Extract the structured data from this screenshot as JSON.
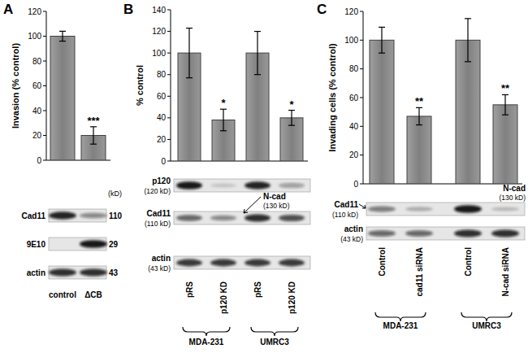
{
  "chart_data": [
    {
      "type": "bar",
      "panel": "A",
      "y_label": "Invasion (% control)",
      "categories": [
        "control",
        "ΔCB"
      ],
      "values": [
        100,
        20
      ],
      "errors": [
        4,
        7
      ],
      "significance": [
        null,
        "***"
      ],
      "color": "#808080",
      "ylim": [
        0,
        120
      ],
      "yticks": [
        0,
        20,
        40,
        60,
        80,
        100,
        120
      ],
      "blot": {
        "header": "(kD)",
        "rows": [
          {
            "left": [
              "Cad11"
            ],
            "right": [
              "110"
            ]
          },
          {
            "left": [
              "9E10"
            ],
            "right": [
              "29"
            ]
          },
          {
            "left": [
              "actin"
            ],
            "right": [
              "43"
            ]
          }
        ]
      }
    },
    {
      "type": "bar",
      "panel": "B",
      "y_label": "% control",
      "categories": [
        "pRS",
        "p120 KD",
        "pRS",
        "p120 KD"
      ],
      "values": [
        100,
        38,
        100,
        40
      ],
      "errors": [
        23,
        10,
        20,
        7
      ],
      "significance": [
        null,
        "*",
        null,
        "*"
      ],
      "groups": [
        "MDA-231",
        "UMRC3"
      ],
      "color": "#808080",
      "ylim": [
        0,
        140
      ],
      "yticks": [
        0,
        20,
        40,
        60,
        80,
        100,
        120,
        140
      ],
      "blot": {
        "rows": [
          {
            "left": [
              "p120",
              "(120 kD)"
            ]
          },
          {
            "left": [
              "Cad11",
              "(110 kD)"
            ],
            "right": [
              "N-cad",
              "(130 kD)"
            ]
          },
          {
            "left": [
              "actin",
              "(43 kD)"
            ]
          }
        ]
      }
    },
    {
      "type": "bar",
      "panel": "C",
      "y_label": "Invading cells (% control)",
      "categories": [
        "Control",
        "cad11 siRNA",
        "Control",
        "N-cad siRNA"
      ],
      "values": [
        100,
        47,
        100,
        55
      ],
      "errors": [
        9,
        6,
        15,
        7
      ],
      "significance": [
        null,
        "**",
        null,
        "**"
      ],
      "groups": [
        "MDA-231",
        "UMRC3"
      ],
      "color": "#808080",
      "ylim": [
        0,
        120
      ],
      "yticks": [
        0,
        20,
        40,
        60,
        80,
        100,
        120
      ],
      "blot": {
        "rows": [
          {
            "left": [
              "Cad11",
              "(110 kD)"
            ],
            "right": [
              "N-cad",
              "(130 kD)"
            ]
          },
          {
            "left": [
              "actin",
              "(43 kD)"
            ]
          }
        ]
      }
    }
  ]
}
